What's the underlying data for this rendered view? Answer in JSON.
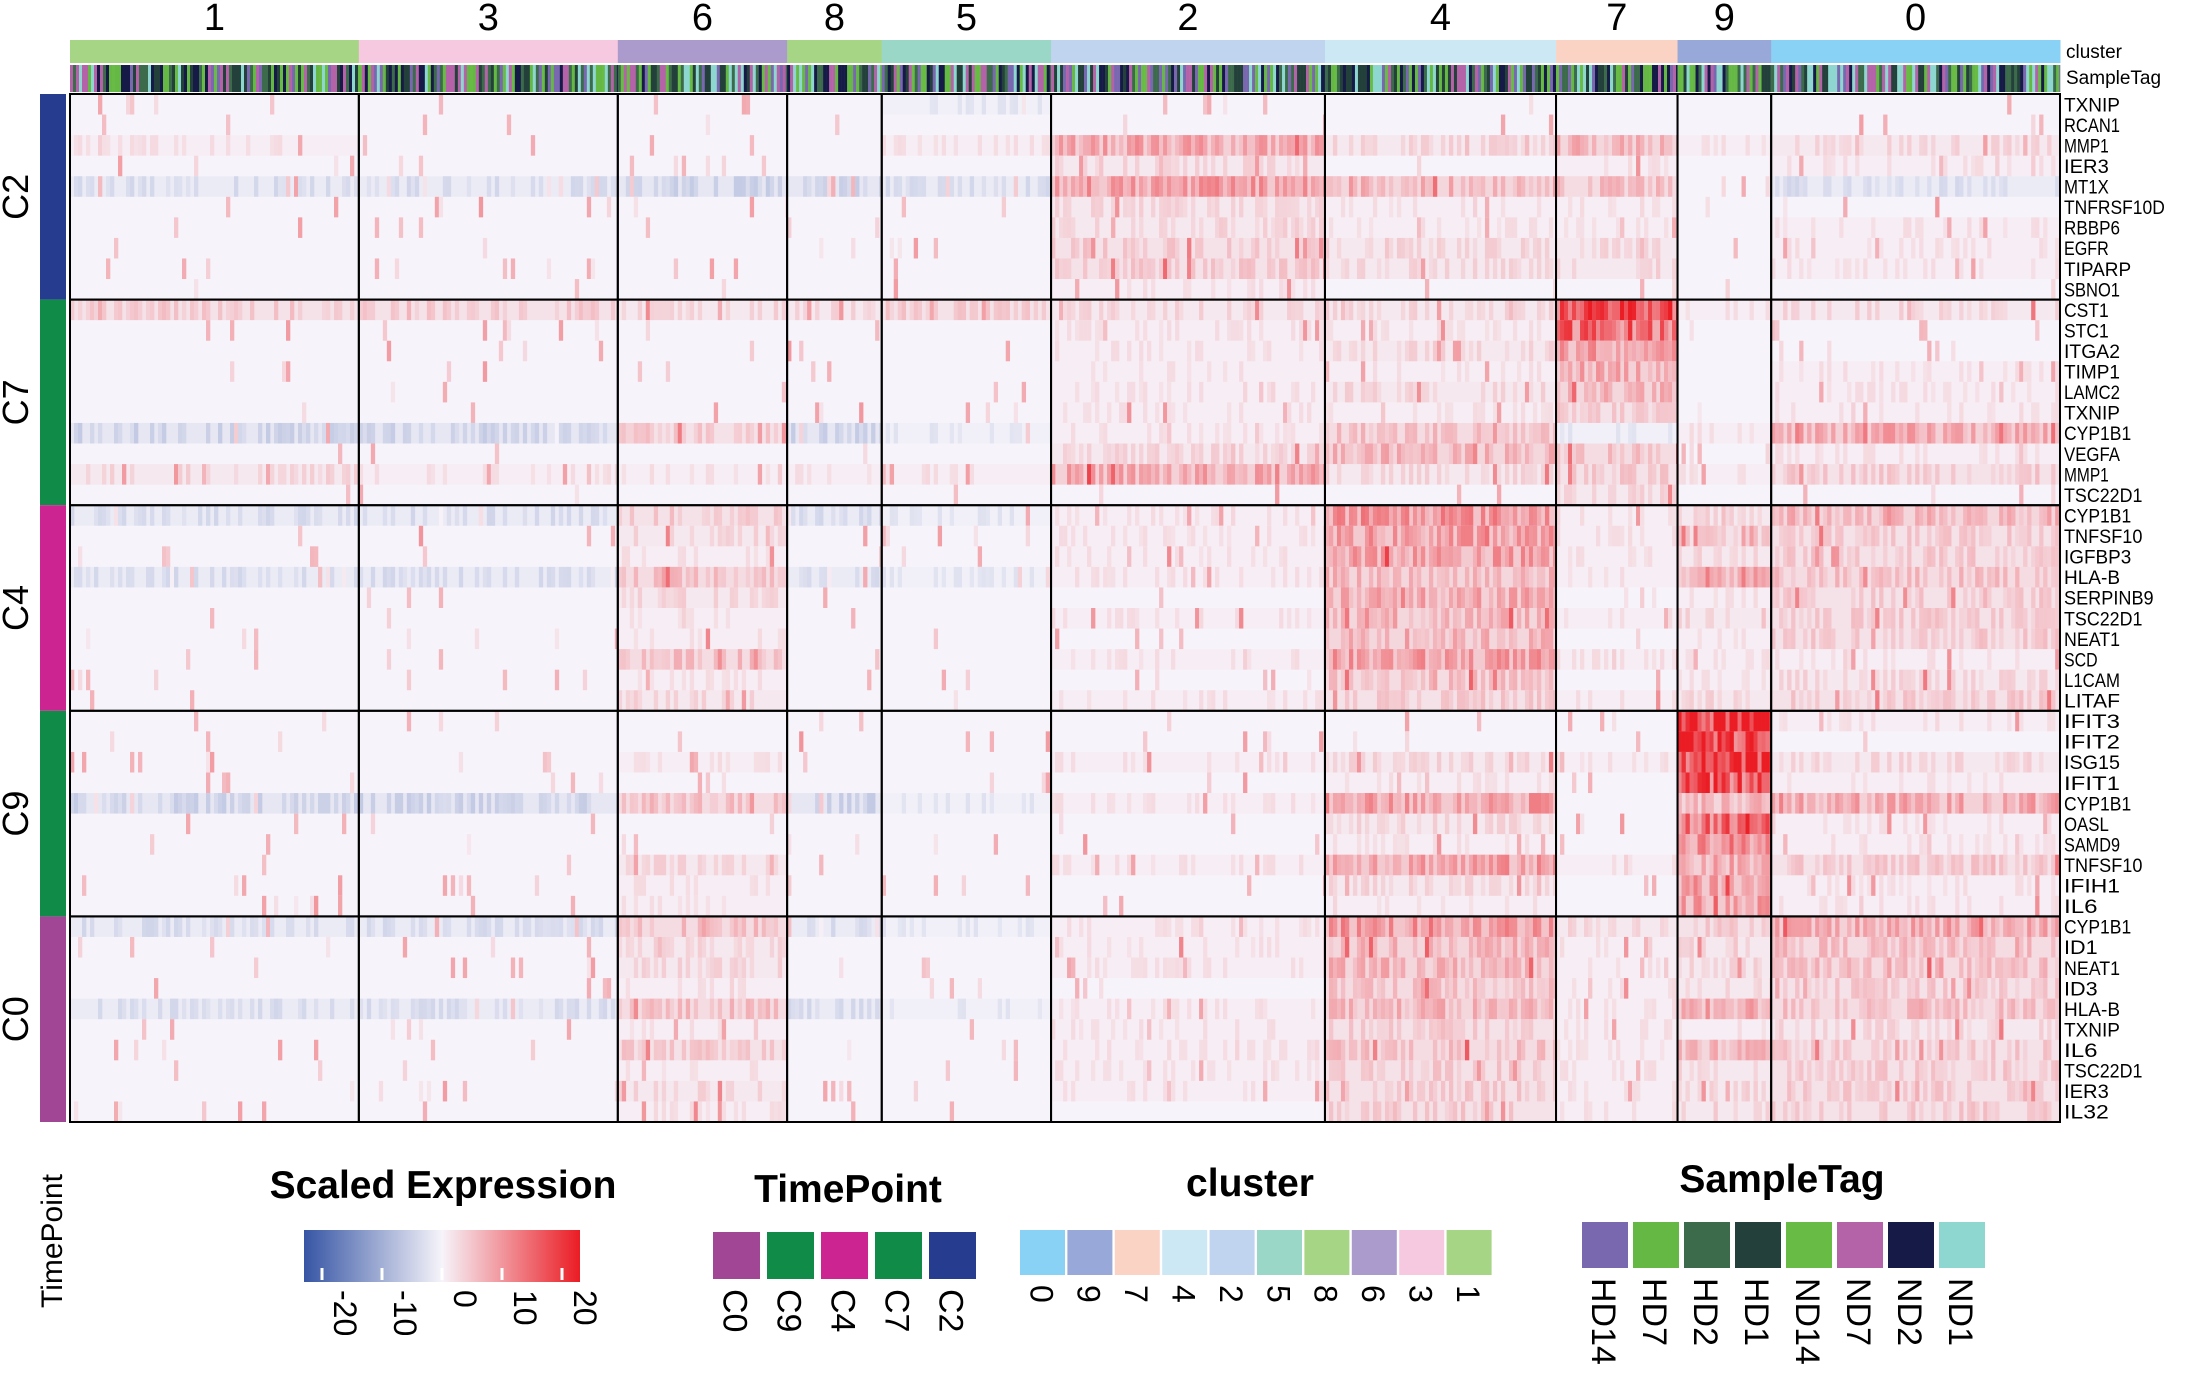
{
  "chart_data": {
    "type": "heatmap",
    "annotation_labels": {
      "cluster": "cluster",
      "sampletag": "SampleTag",
      "timepoint": "TimePoint"
    },
    "clusters": [
      {
        "label": "1",
        "color": "#a6d586",
        "cells": 290
      },
      {
        "label": "3",
        "color": "#f6c9e0",
        "cells": 260
      },
      {
        "label": "6",
        "color": "#ab9bcc",
        "cells": 170
      },
      {
        "label": "8",
        "color": "#a6d586",
        "cells": 95
      },
      {
        "label": "5",
        "color": "#9bd7c6",
        "cells": 170
      },
      {
        "label": "2",
        "color": "#c0d3ef",
        "cells": 275
      },
      {
        "label": "4",
        "color": "#cde8f5",
        "cells": 232
      },
      {
        "label": "7",
        "color": "#fbd3c4",
        "cells": 122
      },
      {
        "label": "9",
        "color": "#97a8d9",
        "cells": 94
      },
      {
        "label": "0",
        "color": "#89d2f5",
        "cells": 290
      }
    ],
    "row_groups": [
      {
        "label": "C2",
        "color": "#263d8f",
        "genes": [
          "TXNIP",
          "RCAN1",
          "MMP1",
          "IER3",
          "MT1X",
          "TNFRSF10D",
          "RBBP6",
          "EGFR",
          "TIPARP",
          "SBNO1"
        ]
      },
      {
        "label": "C7",
        "color": "#108c48",
        "genes": [
          "CST1",
          "STC1",
          "ITGA2",
          "TIMP1",
          "LAMC2",
          "TXNIP",
          "CYP1B1",
          "VEGFA",
          "MMP1",
          "TSC22D1"
        ]
      },
      {
        "label": "C4",
        "color": "#cc2490",
        "genes": [
          "CYP1B1",
          "TNFSF10",
          "IGFBP3",
          "HLA-B",
          "SERPINB9",
          "TSC22D1",
          "NEAT1",
          "SCD",
          "L1CAM",
          "LITAF"
        ]
      },
      {
        "label": "C9",
        "color": "#108c48",
        "genes": [
          "IFIT3",
          "IFIT2",
          "ISG15",
          "IFIT1",
          "CYP1B1",
          "OASL",
          "SAMD9",
          "TNFSF10",
          "IFIH1",
          "IL6"
        ]
      },
      {
        "label": "C0",
        "color": "#a04695",
        "genes": [
          "CYP1B1",
          "ID1",
          "NEAT1",
          "ID3",
          "HLA-B",
          "TXNIP",
          "IL6",
          "TSC22D1",
          "IER3",
          "IL32"
        ]
      }
    ],
    "mean_scaled_expression": {
      "C2": [
        [
          0,
          0,
          0,
          0,
          -1,
          0,
          0,
          0,
          0,
          0
        ],
        [
          0,
          0,
          0,
          0,
          0,
          0,
          0,
          0,
          0,
          0
        ],
        [
          1,
          0,
          0,
          0,
          1,
          6,
          2,
          5,
          1,
          2
        ],
        [
          0,
          0,
          0,
          0,
          0,
          2,
          0,
          1,
          0,
          1
        ],
        [
          -2,
          -2,
          -3,
          -3,
          -2,
          7,
          5,
          4,
          0,
          -2
        ],
        [
          0,
          0,
          0,
          0,
          0,
          2,
          1,
          1,
          0,
          0
        ],
        [
          0,
          0,
          0,
          0,
          0,
          2,
          1,
          1,
          0,
          1
        ],
        [
          0,
          0,
          0,
          0,
          0,
          3,
          2,
          2,
          0,
          1
        ],
        [
          0,
          0,
          0,
          0,
          0,
          3,
          2,
          2,
          0,
          1
        ],
        [
          0,
          0,
          0,
          0,
          0,
          1,
          0,
          0,
          0,
          0
        ]
      ],
      "C7": [
        [
          3,
          3,
          2,
          2,
          3,
          2,
          2,
          16,
          1,
          2
        ],
        [
          0,
          0,
          0,
          0,
          0,
          1,
          1,
          12,
          0,
          0
        ],
        [
          0,
          0,
          0,
          0,
          0,
          1,
          2,
          7,
          0,
          0
        ],
        [
          0,
          0,
          0,
          0,
          0,
          1,
          1,
          6,
          0,
          1
        ],
        [
          0,
          0,
          0,
          0,
          0,
          1,
          2,
          5,
          0,
          1
        ],
        [
          0,
          0,
          0,
          0,
          0,
          1,
          1,
          3,
          0,
          1
        ],
        [
          -3,
          -3,
          3,
          -3,
          -1,
          1,
          4,
          -1,
          1,
          6
        ],
        [
          0,
          0,
          0,
          0,
          0,
          2,
          5,
          4,
          0,
          1
        ],
        [
          2,
          1,
          1,
          1,
          1,
          6,
          2,
          3,
          1,
          3
        ],
        [
          0,
          0,
          0,
          0,
          0,
          0,
          0,
          2,
          0,
          0
        ]
      ],
      "C4": [
        [
          -2,
          -2,
          3,
          -2,
          -1,
          1,
          8,
          1,
          2,
          5
        ],
        [
          0,
          0,
          2,
          0,
          0,
          1,
          7,
          1,
          3,
          3
        ],
        [
          0,
          0,
          1,
          0,
          0,
          1,
          7,
          1,
          2,
          3
        ],
        [
          -2,
          -2,
          4,
          -2,
          -1,
          1,
          5,
          1,
          6,
          4
        ],
        [
          0,
          0,
          2,
          0,
          0,
          0,
          6,
          0,
          1,
          3
        ],
        [
          0,
          0,
          1,
          0,
          0,
          1,
          5,
          1,
          2,
          3
        ],
        [
          0,
          0,
          1,
          0,
          0,
          0,
          5,
          0,
          1,
          3
        ],
        [
          0,
          0,
          4,
          0,
          0,
          1,
          7,
          1,
          1,
          1
        ],
        [
          0,
          0,
          1,
          0,
          0,
          0,
          4,
          0,
          1,
          2
        ],
        [
          0,
          0,
          2,
          0,
          0,
          1,
          3,
          1,
          2,
          3
        ]
      ],
      "C9": [
        [
          0,
          0,
          0,
          0,
          0,
          0,
          0,
          0,
          18,
          1
        ],
        [
          0,
          0,
          0,
          0,
          0,
          0,
          0,
          0,
          16,
          0
        ],
        [
          0,
          0,
          1,
          0,
          0,
          1,
          2,
          1,
          17,
          2
        ],
        [
          0,
          0,
          0,
          0,
          0,
          0,
          1,
          0,
          14,
          1
        ],
        [
          -3,
          -3,
          4,
          -3,
          -1,
          1,
          7,
          0,
          5,
          6
        ],
        [
          0,
          0,
          0,
          0,
          0,
          0,
          2,
          0,
          12,
          1
        ],
        [
          0,
          0,
          0,
          0,
          0,
          0,
          1,
          0,
          9,
          1
        ],
        [
          0,
          0,
          2,
          0,
          0,
          1,
          7,
          1,
          6,
          3
        ],
        [
          0,
          0,
          1,
          0,
          0,
          0,
          2,
          0,
          7,
          1
        ],
        [
          0,
          0,
          1,
          0,
          0,
          0,
          1,
          0,
          7,
          1
        ]
      ],
      "C0": [
        [
          -2,
          -2,
          4,
          -2,
          -1,
          1,
          8,
          2,
          3,
          6
        ],
        [
          0,
          0,
          2,
          0,
          0,
          1,
          5,
          1,
          2,
          4
        ],
        [
          0,
          0,
          2,
          0,
          0,
          1,
          5,
          1,
          2,
          4
        ],
        [
          0,
          0,
          1,
          0,
          0,
          0,
          4,
          1,
          2,
          3
        ],
        [
          -2,
          -2,
          4,
          -2,
          -1,
          1,
          5,
          1,
          6,
          4
        ],
        [
          0,
          0,
          1,
          0,
          0,
          1,
          3,
          1,
          1,
          2
        ],
        [
          0,
          0,
          3,
          0,
          0,
          1,
          4,
          1,
          5,
          3
        ],
        [
          0,
          0,
          1,
          0,
          0,
          1,
          3,
          1,
          2,
          3
        ],
        [
          0,
          0,
          2,
          0,
          0,
          1,
          3,
          1,
          2,
          3
        ],
        [
          0,
          0,
          1,
          0,
          0,
          0,
          3,
          1,
          2,
          3
        ]
      ]
    },
    "color_scale": {
      "min": -20,
      "max": 20,
      "low": "#3655a5",
      "mid": "#f6f4fa",
      "high": "#eb1c24",
      "ticks": [
        -20,
        -10,
        0,
        10,
        20
      ]
    },
    "legends": {
      "expression": {
        "title": "Scaled Expression"
      },
      "timepoint": {
        "title": "TimePoint",
        "items": [
          {
            "label": "C0",
            "color": "#a04695"
          },
          {
            "label": "C9",
            "color": "#108c48"
          },
          {
            "label": "C4",
            "color": "#cc2490"
          },
          {
            "label": "C7",
            "color": "#108c48"
          },
          {
            "label": "C2",
            "color": "#263d8f"
          }
        ]
      },
      "cluster": {
        "title": "cluster",
        "items": [
          {
            "label": "0",
            "color": "#89d2f5"
          },
          {
            "label": "9",
            "color": "#97a8d9"
          },
          {
            "label": "7",
            "color": "#fbd3c4"
          },
          {
            "label": "4",
            "color": "#cde8f5"
          },
          {
            "label": "2",
            "color": "#c0d3ef"
          },
          {
            "label": "5",
            "color": "#9bd7c6"
          },
          {
            "label": "8",
            "color": "#a6d586"
          },
          {
            "label": "6",
            "color": "#ab9bcc"
          },
          {
            "label": "3",
            "color": "#f6c9e0"
          },
          {
            "label": "1",
            "color": "#a6d586"
          }
        ]
      },
      "sampletag": {
        "title": "SampleTag",
        "items": [
          {
            "label": "HD14",
            "color": "#7968b0"
          },
          {
            "label": "HD7",
            "color": "#66b845"
          },
          {
            "label": "HD2",
            "color": "#3c6b4c"
          },
          {
            "label": "HD1",
            "color": "#23403a"
          },
          {
            "label": "ND14",
            "color": "#68bc45"
          },
          {
            "label": "ND7",
            "color": "#b563a8"
          },
          {
            "label": "ND2",
            "color": "#161a47"
          },
          {
            "label": "ND1",
            "color": "#8ed6d0"
          }
        ]
      }
    }
  }
}
